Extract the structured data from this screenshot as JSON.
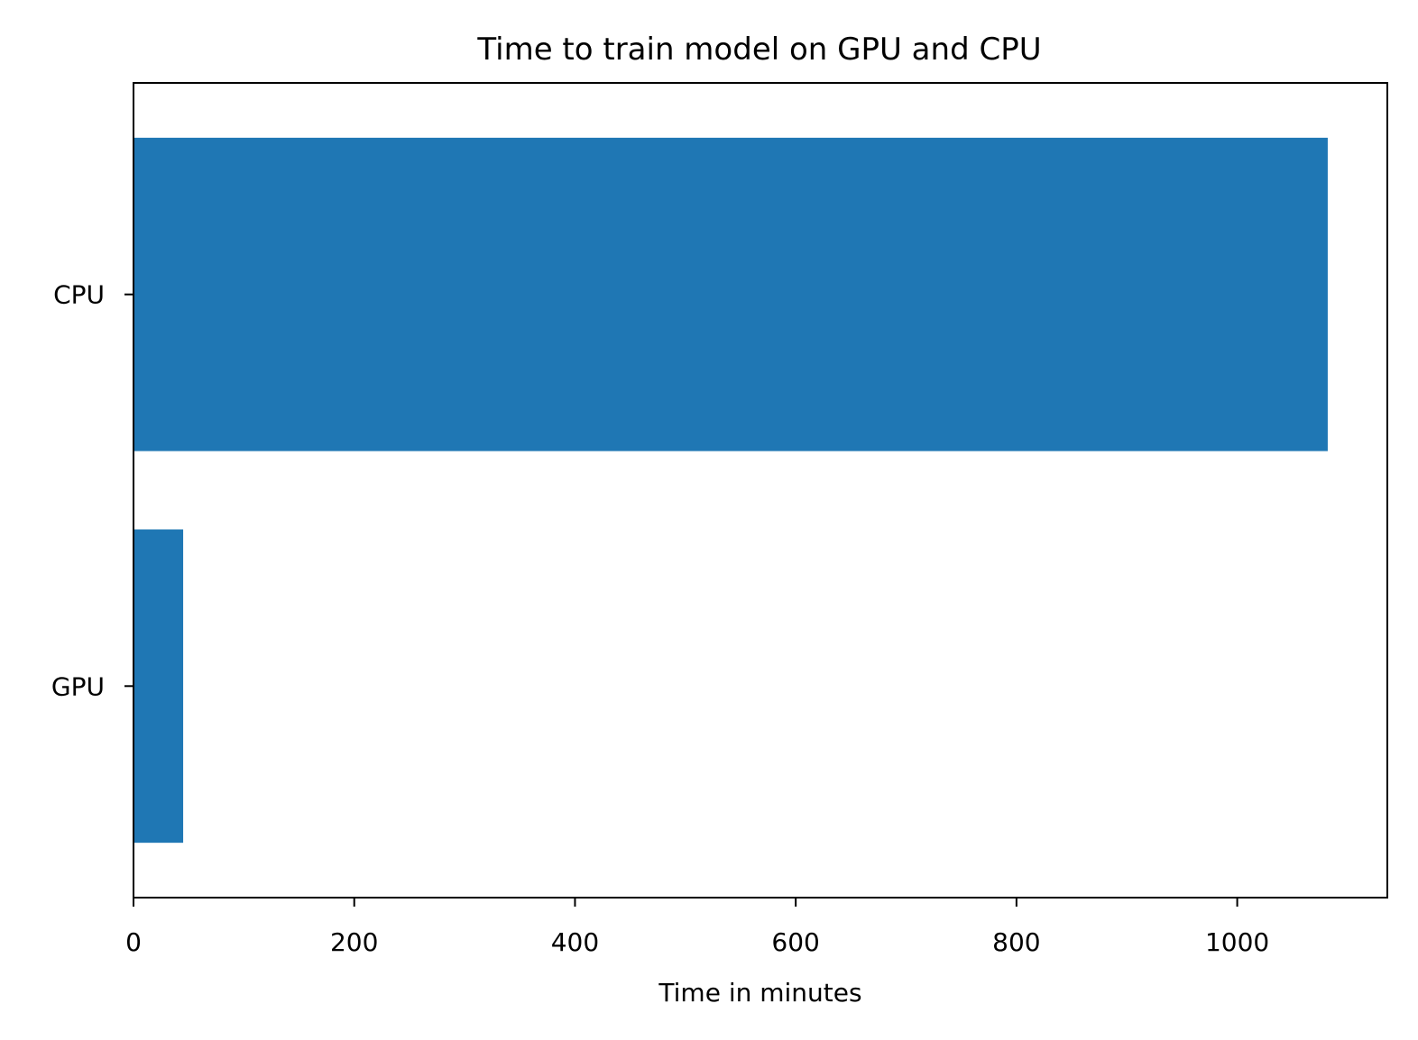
{
  "chart_data": {
    "type": "bar",
    "orientation": "horizontal",
    "title": "Time to train model on GPU and CPU",
    "xlabel": "Time in minutes",
    "ylabel": "",
    "categories": [
      "GPU",
      "CPU"
    ],
    "values": [
      45,
      1082
    ],
    "xlim": [
      0,
      1136
    ],
    "xticks": [
      0,
      200,
      400,
      600,
      800,
      1000
    ],
    "xtick_labels": [
      "0",
      "200",
      "400",
      "600",
      "800",
      "1000"
    ],
    "grid": false,
    "bar_color": "#1f77b4"
  }
}
